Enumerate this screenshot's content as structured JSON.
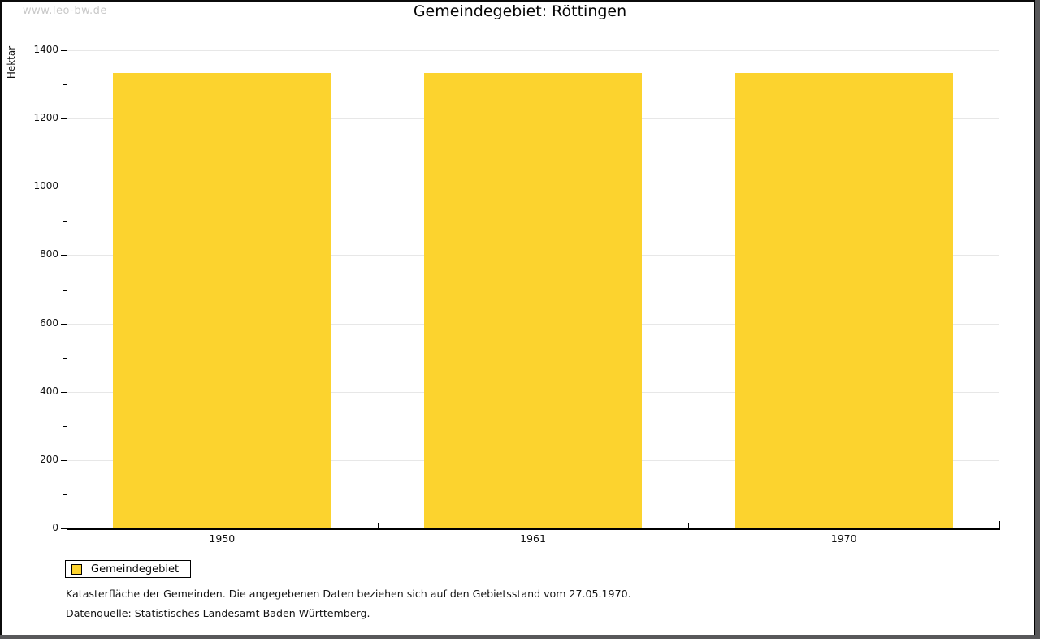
{
  "watermark": "www.leo-bw.de",
  "header": {
    "title": "Gemeindegebiet: Röttingen"
  },
  "legend": {
    "label": "Gemeindegebiet",
    "swatch_color": "#FCD32E"
  },
  "footnotes": {
    "line1": "Katasterfläche der Gemeinden. Die angegebenen Daten beziehen sich auf den Gebietsstand vom 27.05.1970.",
    "line2": "Datenquelle: Statistisches Landesamt Baden-Württemberg."
  },
  "chart_data": {
    "type": "bar",
    "title": "Gemeindegebiet: Röttingen",
    "categories": [
      "1950",
      "1961",
      "1970"
    ],
    "series": [
      {
        "name": "Gemeindegebiet",
        "values": [
          1333,
          1333,
          1333
        ],
        "color": "#FCD32E"
      }
    ],
    "xlabel": "",
    "ylabel": "Hektar",
    "ylim": [
      0,
      1400
    ],
    "ytick_step": 200,
    "yminor_step": 100,
    "grid": true,
    "legend_position": "bottom-left",
    "bar_width_fraction": 0.7
  },
  "colors": {
    "bar": "#FCD32E",
    "grid": "#e7e7e7",
    "axis": "#000000",
    "watermark": "#c9c9c9",
    "frame": "#58585a"
  }
}
